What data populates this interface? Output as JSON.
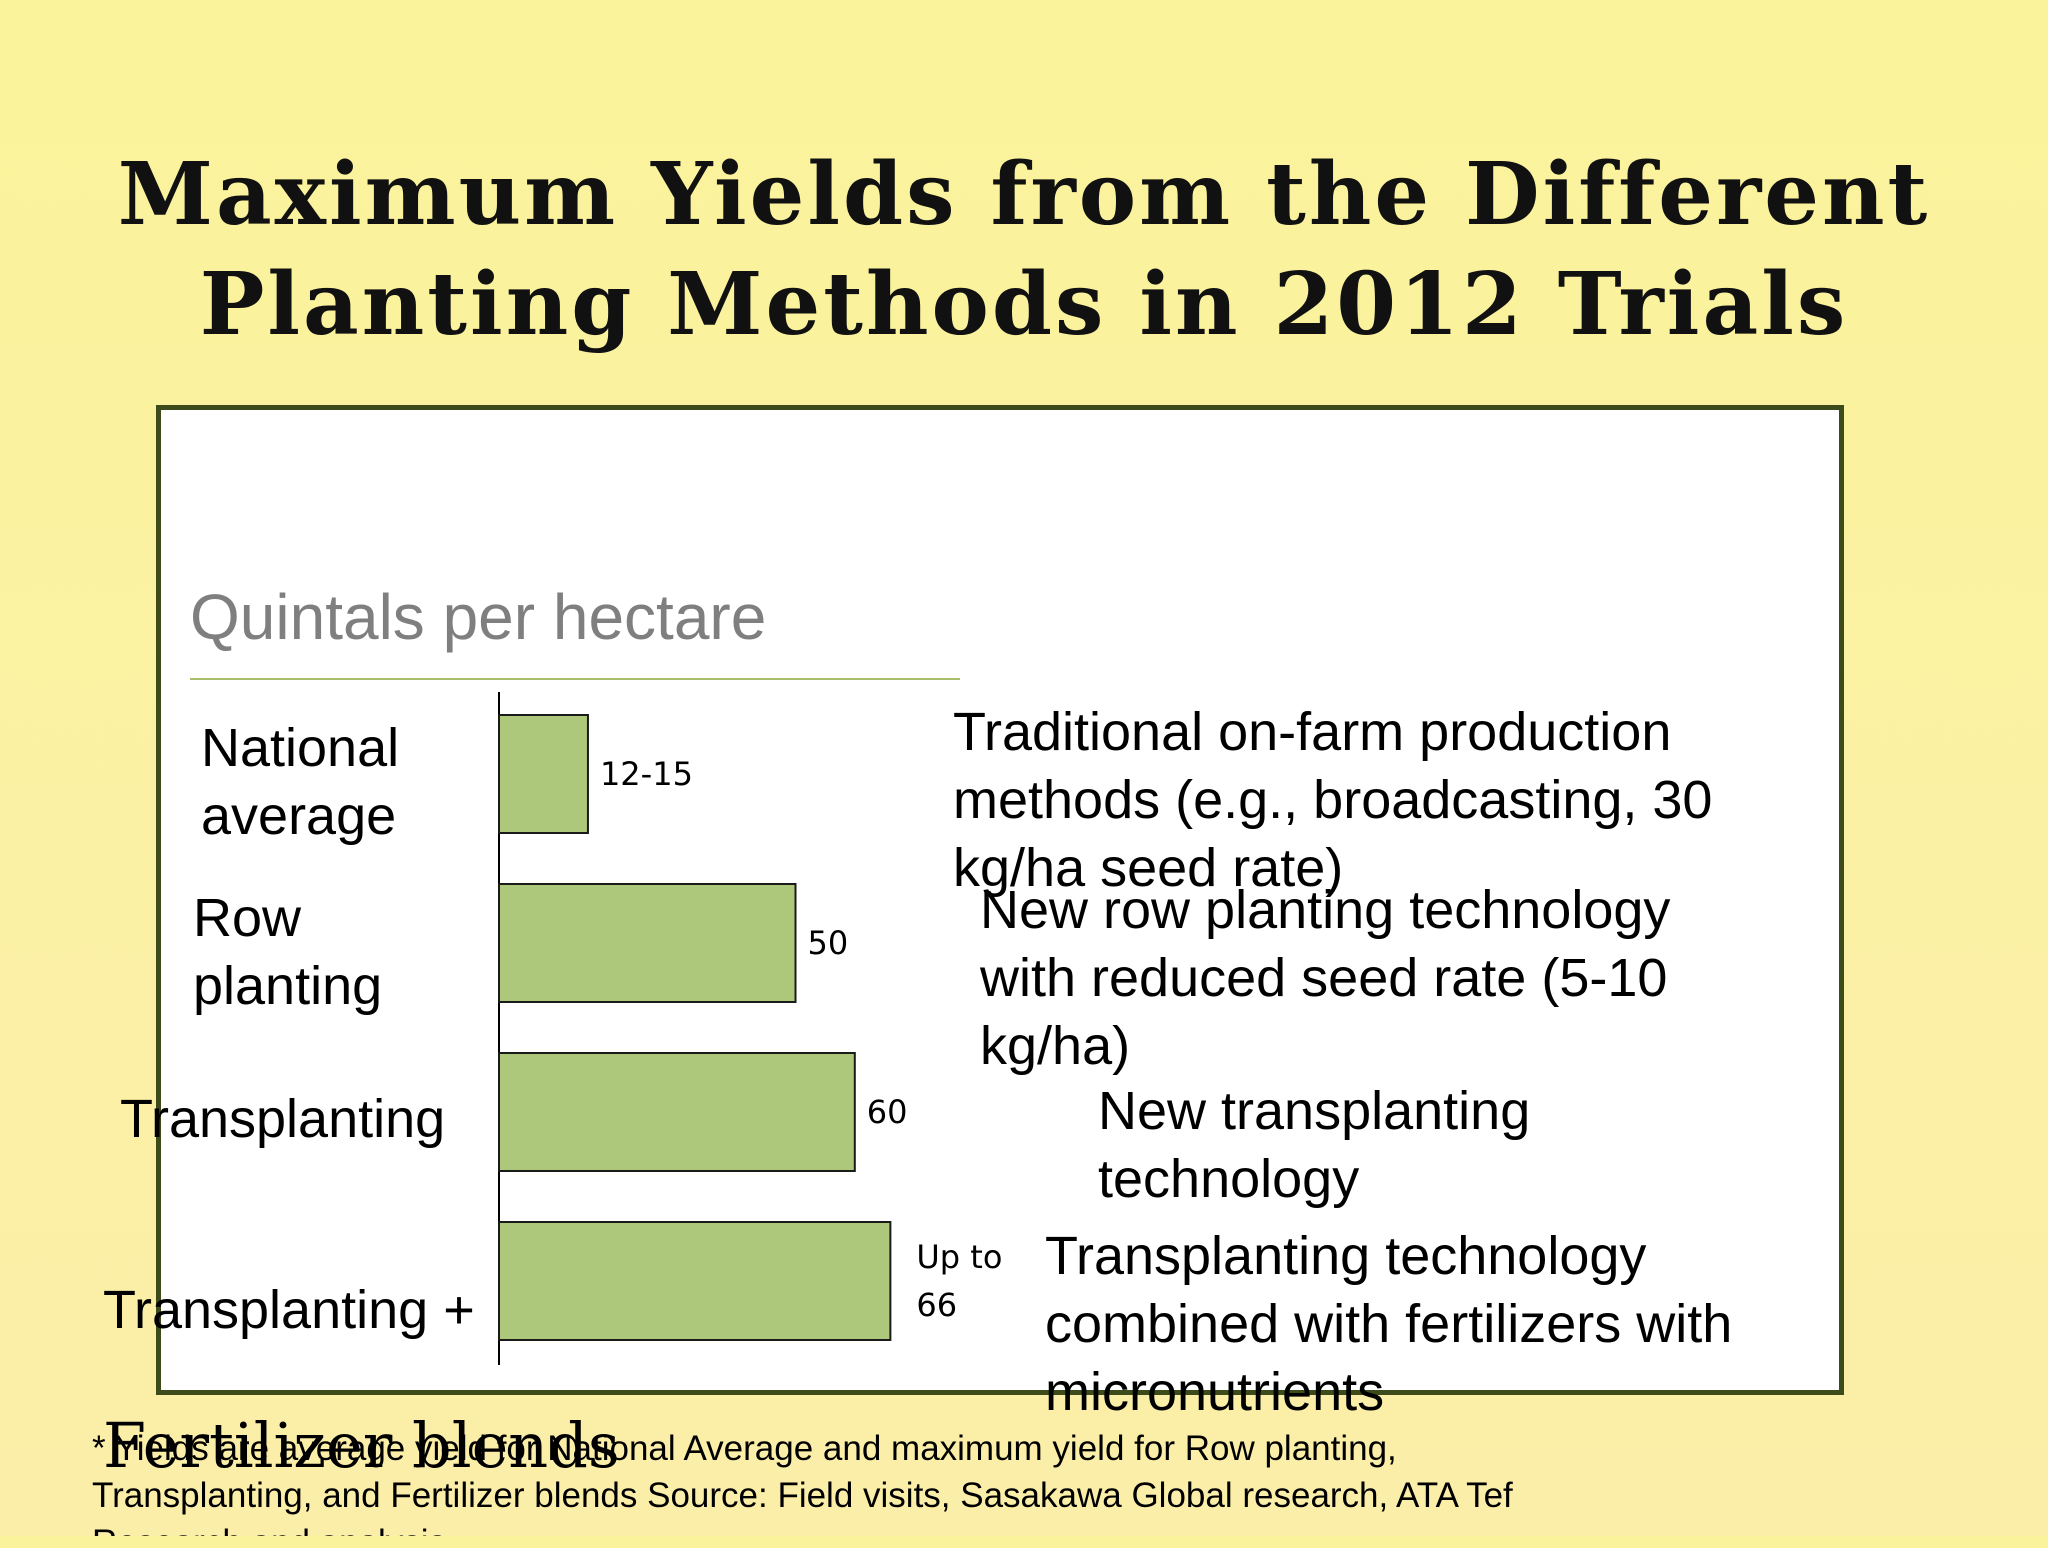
{
  "slide": {
    "title": "Maximum Yields from the Different Planting Methods in 2012 Trials",
    "unit_label": "Quintals per hectare",
    "footnote": "* Yields are average yield for National Average and maximum yield for Row planting,\nTransplanting, and Fertilizer blends    Source: Field visits, Sasakawa Global research, ATA Tef\nResearch and analysis"
  },
  "categories": [
    {
      "label": "National\naverage",
      "description": "Traditional on-farm production\nmethods (e.g., broadcasting, 30\nkg/ha seed rate)"
    },
    {
      "label": "Row\nplanting",
      "description": "New row planting technology\nwith reduced seed rate (5-10\nkg/ha)"
    },
    {
      "label": "Transplanting",
      "description": "New transplanting\ntechnology"
    },
    {
      "label_line1": "Transplanting +",
      "label_line2": "Fertilizer blends",
      "description": "Transplanting technology\ncombined with fertilizers with\nmicronutrients"
    }
  ],
  "chart_data": {
    "type": "bar",
    "orientation": "horizontal",
    "ylabel": "Quintals per hectare",
    "categories": [
      "National average",
      "Row planting",
      "Transplanting",
      "Transplanting + Fertilizer blends"
    ],
    "values": [
      15,
      50,
      60,
      66
    ],
    "data_labels": [
      "12-15",
      "50",
      "60",
      "Up to\n66"
    ],
    "xlim": [
      0,
      66
    ],
    "grid": false,
    "legend": "none"
  },
  "colors": {
    "bar_fill": "#adc87a",
    "bar_stroke": "#1a1a1a",
    "frame_border": "#3d4a1a"
  }
}
